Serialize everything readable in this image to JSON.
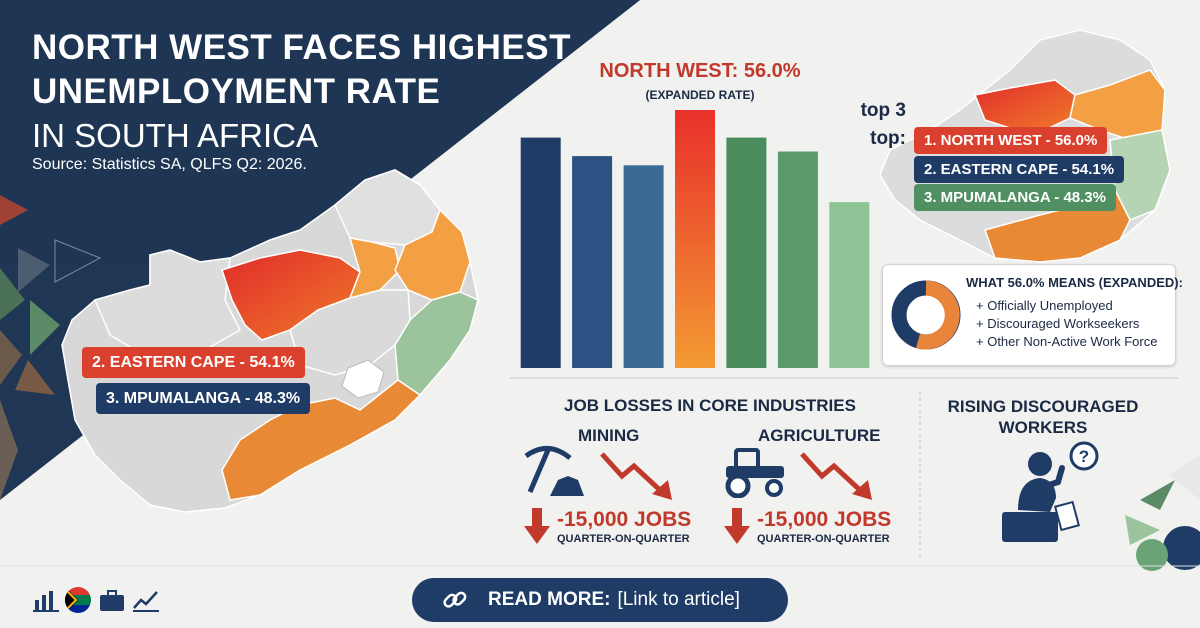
{
  "headline": {
    "line1": "NORTH WEST FACES HIGHEST",
    "line2": "UNEMPLOYMENT RATE",
    "line3": "IN SOUTH AFRICA",
    "source": "Source: Statistics SA, QLFS Q2: 2026."
  },
  "map_labels": {
    "eastern_cape": "2. EASTERN CAPE - 54.1%",
    "mpumalanga": "3. MPUMALANGA - 48.3%"
  },
  "chart_data": {
    "type": "bar",
    "title": "NORTH WEST: 56.0%",
    "subtitle": "(EXPANDED RATE)",
    "categories": [
      "",
      "",
      "",
      "",
      "",
      "",
      ""
    ],
    "values": [
      50,
      46,
      44,
      56,
      50,
      47,
      36
    ],
    "colors": [
      "#1f3c66",
      "#2b5282",
      "#3a6b97",
      "red-gradient",
      "#4a8c5c",
      "#5b9a6a",
      "#8ec396"
    ],
    "highlight_index": 3
  },
  "top3": {
    "label_line1": "top 3",
    "label_line2": "top:",
    "items": [
      {
        "text": "1. NORTH WEST - 56.0%",
        "color": "#d9412e"
      },
      {
        "text": "2. EASTERN CAPE - 54.1%",
        "color": "#1f3c66"
      },
      {
        "text": "3. MPUMALANGA - 48.3%",
        "color": "#4f8f61"
      }
    ]
  },
  "expanded": {
    "title": "WHAT 56.0% MEANS (EXPANDED):",
    "items": [
      "+ Officially Unemployed",
      "+ Discouraged Workseekers",
      "+ Other Non-Active Work Force"
    ],
    "donut_colors": [
      "#1f3c66",
      "#e9853a"
    ]
  },
  "job_losses": {
    "title": "JOB LOSSES IN CORE INDUSTRIES",
    "mining": {
      "label": "MINING",
      "icon": "pickaxe-icon",
      "value": "-15,000 JOBS",
      "period": "QUARTER-ON-QUARTER"
    },
    "agriculture": {
      "label": "AGRICULTURE",
      "icon": "tractor-icon",
      "value": "-15,000 JOBS",
      "period": "QUARTER-ON-QUARTER"
    }
  },
  "discouraged": {
    "line1": "RISING DISCOURAGED",
    "line2": "WORKERS",
    "icon": "thinking-person-icon"
  },
  "footer": {
    "icons": [
      "bar-chart-icon",
      "south-africa-flag-icon",
      "briefcase-icon",
      "line-chart-icon"
    ],
    "read_more_label": "READ MORE:",
    "read_more_link": "[Link to article]"
  }
}
